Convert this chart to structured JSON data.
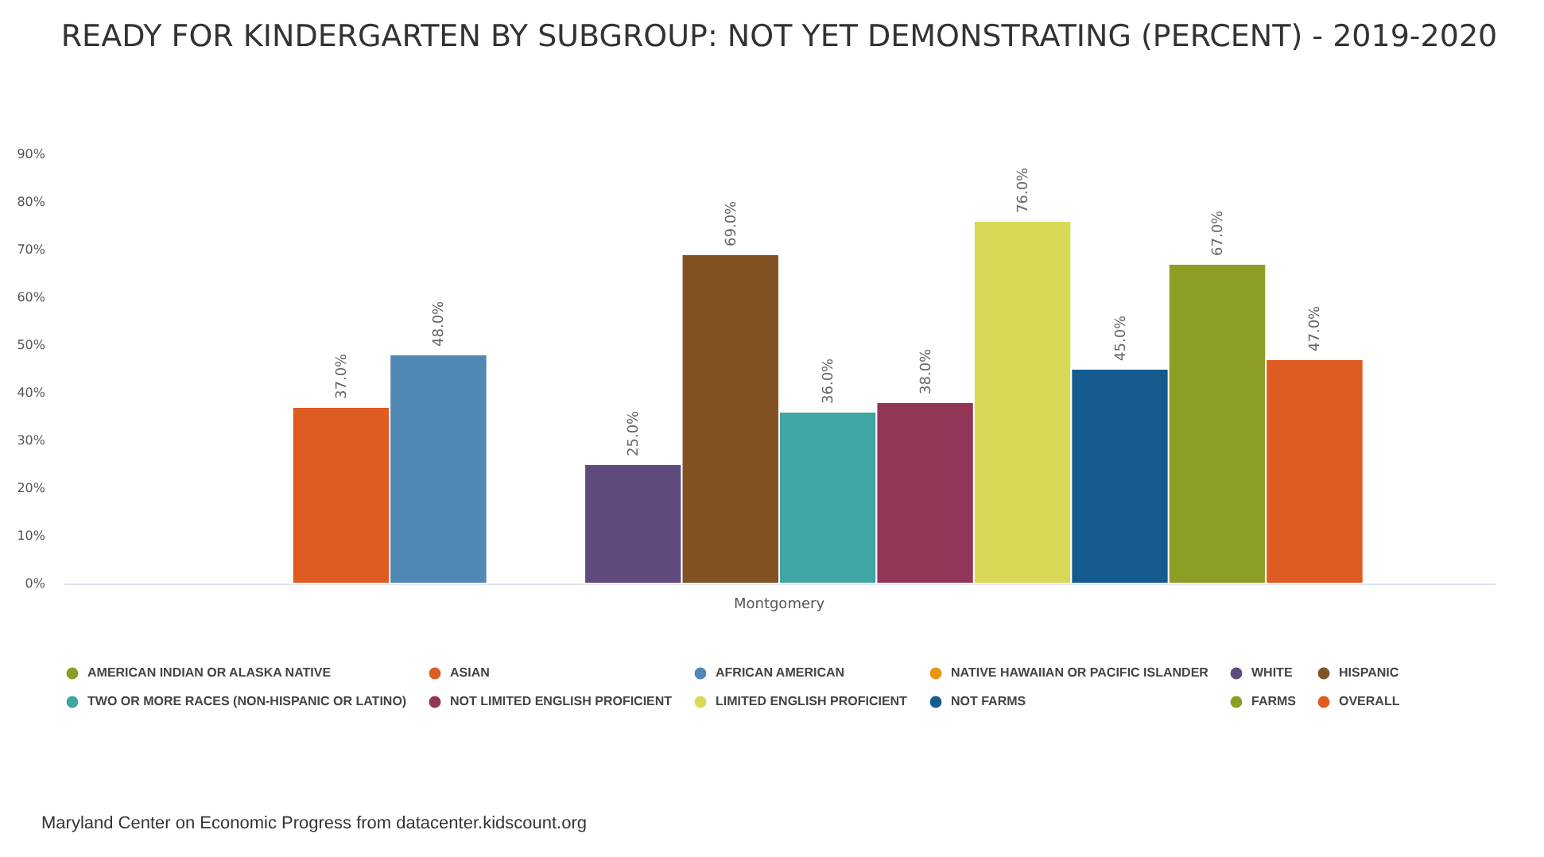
{
  "chart_data": {
    "type": "bar",
    "title": "READY FOR KINDERGARTEN BY SUBGROUP: NOT YET DEMONSTRATING (PERCENT) - 2019-2020",
    "categories": [
      "Montgomery"
    ],
    "series": [
      {
        "name": "AMERICAN INDIAN OR ALASKA NATIVE",
        "color": "#8c9c24",
        "values": [
          null
        ],
        "value_labels": [
          null
        ]
      },
      {
        "name": "ASIAN",
        "color": "#de5b21",
        "values": [
          37
        ],
        "value_labels": [
          "37.0%"
        ]
      },
      {
        "name": "AFRICAN AMERICAN",
        "color": "#5087b4",
        "values": [
          48
        ],
        "value_labels": [
          "48.0%"
        ]
      },
      {
        "name": "NATIVE HAWAIIAN OR PACIFIC ISLANDER",
        "color": "#e8960f",
        "values": [
          null
        ],
        "value_labels": [
          null
        ]
      },
      {
        "name": "WHITE",
        "color": "#5e4a7c",
        "values": [
          25
        ],
        "value_labels": [
          "25.0%"
        ]
      },
      {
        "name": "HISPANIC",
        "color": "#825224",
        "values": [
          69
        ],
        "value_labels": [
          "69.0%"
        ]
      },
      {
        "name": "TWO OR MORE RACES (NON-HISPANIC OR LATINO)",
        "color": "#3ea6a3",
        "values": [
          36
        ],
        "value_labels": [
          "36.0%"
        ]
      },
      {
        "name": "NOT LIMITED ENGLISH PROFICIENT",
        "color": "#923659",
        "values": [
          38
        ],
        "value_labels": [
          "38.0%"
        ]
      },
      {
        "name": "LIMITED ENGLISH PROFICIENT",
        "color": "#d9d957",
        "values": [
          76
        ],
        "value_labels": [
          "76.0%"
        ]
      },
      {
        "name": "NOT FARMS",
        "color": "#165b8f",
        "values": [
          45
        ],
        "value_labels": [
          "45.0%"
        ]
      },
      {
        "name": "FARMS",
        "color": "#8e9e25",
        "values": [
          67
        ],
        "value_labels": [
          "67.0%"
        ]
      },
      {
        "name": "OVERALL",
        "color": "#de5b21",
        "values": [
          47
        ],
        "value_labels": [
          "47.0%"
        ]
      }
    ],
    "ylim": [
      0,
      90
    ],
    "yticks": [
      {
        "value": 0,
        "label": "0%"
      },
      {
        "value": 10,
        "label": "10%"
      },
      {
        "value": 20,
        "label": "20%"
      },
      {
        "value": 30,
        "label": "30%"
      },
      {
        "value": 40,
        "label": "40%"
      },
      {
        "value": 50,
        "label": "50%"
      },
      {
        "value": 60,
        "label": "60%"
      },
      {
        "value": 70,
        "label": "70%"
      },
      {
        "value": 80,
        "label": "80%"
      },
      {
        "value": 90,
        "label": "90%"
      }
    ],
    "grid": false,
    "legend": "bottom",
    "annotations": [
      "Maryland Center on Economic Progress from datacenter.kidscount.org"
    ]
  }
}
